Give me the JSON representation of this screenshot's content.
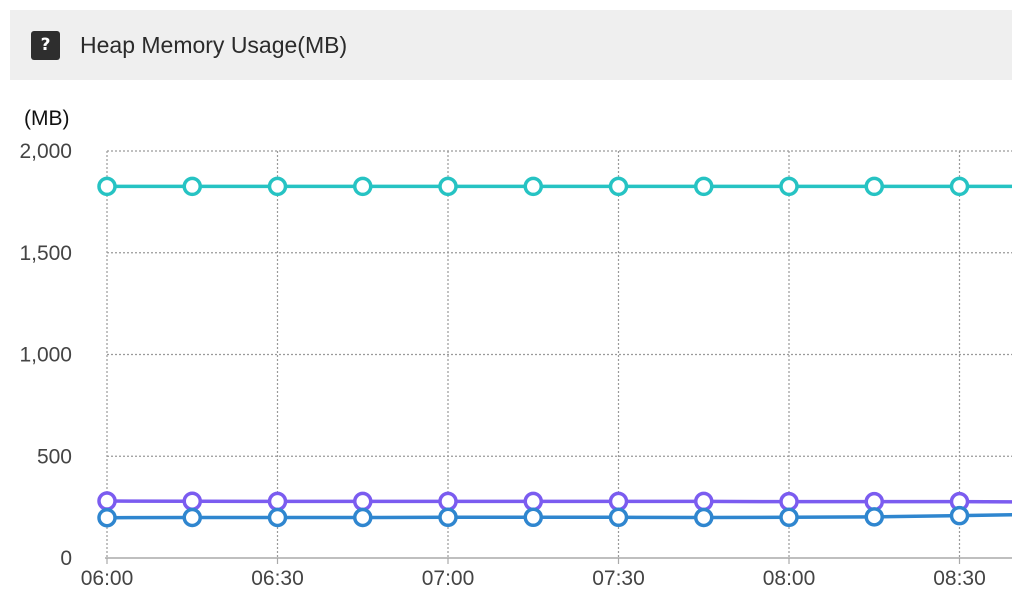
{
  "header": {
    "help_icon": "?",
    "title": "Heap Memory Usage(MB)"
  },
  "colors": {
    "series_top": "#26c3c3",
    "series_middle": "#7b5cf0",
    "series_bottom": "#2f86cf",
    "grid": "#9a9a9a",
    "axis": "#aaaaaa",
    "header_bg": "#efefef"
  },
  "chart_data": {
    "type": "line",
    "title": "Heap Memory Usage(MB)",
    "unit_label": "(MB)",
    "ylabel": "",
    "xlabel": "",
    "ylim": [
      0,
      2000
    ],
    "yticks": [
      0,
      500,
      1000,
      1500,
      2000
    ],
    "ytick_labels": [
      "0",
      "500",
      "1,000",
      "1,500",
      "2,000"
    ],
    "xlim": [
      "06:00",
      "08:40"
    ],
    "xticks": [
      "06:00",
      "06:30",
      "07:00",
      "07:30",
      "08:00",
      "08:30"
    ],
    "grid": true,
    "x": [
      "06:00",
      "06:15",
      "06:30",
      "06:45",
      "07:00",
      "07:15",
      "07:30",
      "07:45",
      "08:00",
      "08:15",
      "08:30",
      "08:40"
    ],
    "series": [
      {
        "values": [
          1826,
          1826,
          1826,
          1826,
          1826,
          1826,
          1826,
          1826,
          1826,
          1826,
          1826,
          1826
        ],
        "color": "#26c3c3"
      },
      {
        "values": [
          280,
          279,
          278,
          278,
          278,
          278,
          278,
          278,
          277,
          277,
          277,
          276
        ],
        "color": "#7b5cf0"
      },
      {
        "values": [
          198,
          199,
          199,
          199,
          200,
          200,
          200,
          199,
          200,
          202,
          208,
          213
        ],
        "color": "#2f86cf"
      }
    ],
    "marker_count_per_series": 11
  }
}
